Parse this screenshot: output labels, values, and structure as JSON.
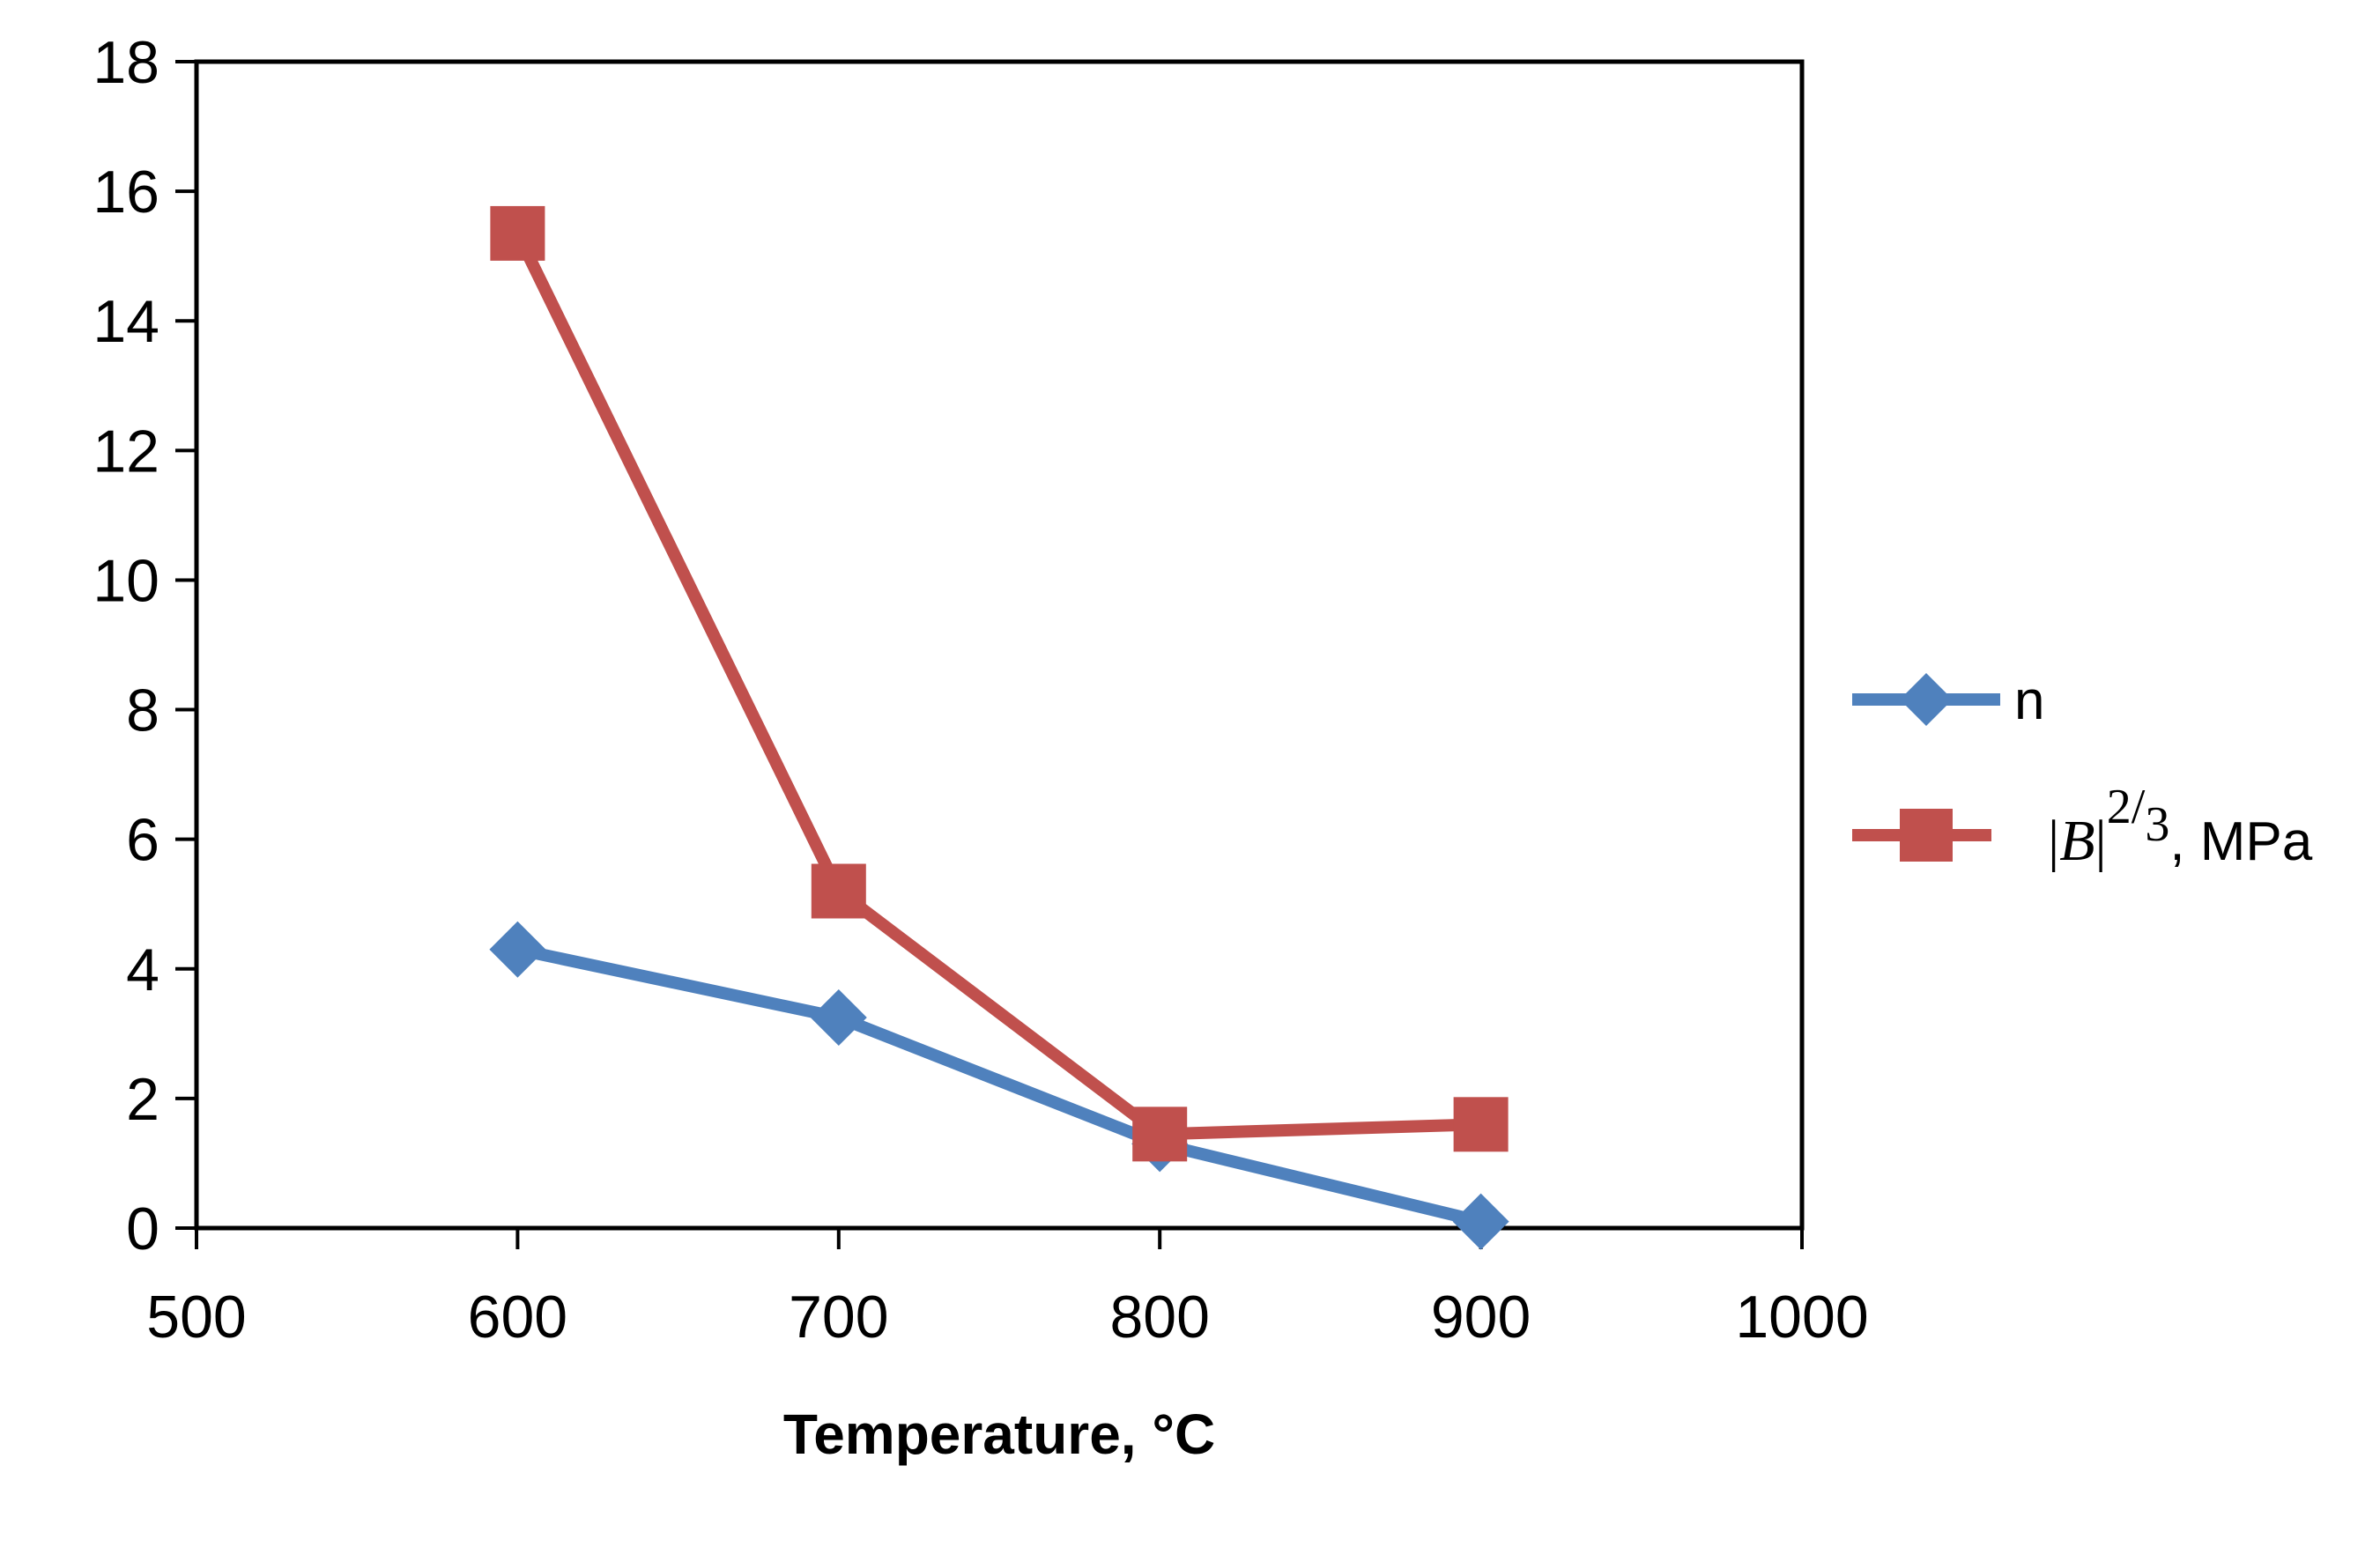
{
  "chart_data": {
    "type": "line",
    "title": "",
    "xlabel": "Temperature, °C",
    "ylabel": "",
    "xlim": [
      500,
      1000
    ],
    "ylim": [
      0,
      18
    ],
    "x_ticks": [
      "500",
      "600",
      "700",
      "800",
      "900",
      "1000"
    ],
    "y_ticks": [
      "0",
      "2",
      "4",
      "6",
      "8",
      "10",
      "12",
      "14",
      "16",
      "18"
    ],
    "grid": false,
    "legend_position": "right",
    "series": [
      {
        "name": "n",
        "color": "#4F81BD",
        "marker": "diamond",
        "x": [
          600,
          700,
          800,
          900
        ],
        "y": [
          4.3,
          3.25,
          1.3,
          0.1
        ]
      },
      {
        "name": "|B|^2/3, MPa",
        "color": "#C0504D",
        "marker": "square",
        "x": [
          600,
          700,
          800,
          900
        ],
        "y": [
          15.35,
          5.2,
          1.45,
          1.6
        ]
      }
    ],
    "legend": {
      "n_label": "n",
      "b_bar_left": "|",
      "b_symbol": "B",
      "b_bar_right": "|",
      "b_exp_num": "2",
      "b_exp_slash": "/",
      "b_exp_den": "3",
      "b_unit": ", MPa"
    }
  }
}
